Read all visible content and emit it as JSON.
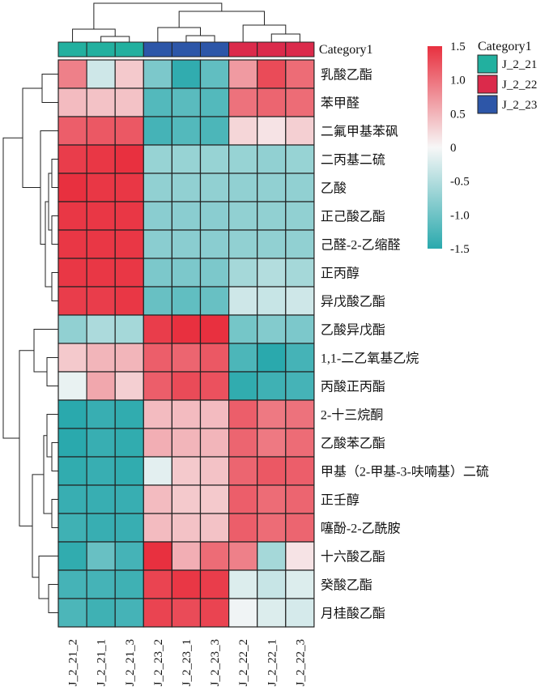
{
  "chart_data": {
    "type": "heatmap",
    "title": "",
    "color_scale": {
      "min": -1.5,
      "max": 1.5,
      "low_color": "#2aa9ad",
      "mid_color": "#f7f7f7",
      "high_color": "#e8303f",
      "ticks": [
        "1.5",
        "1.0",
        "0.5",
        "0",
        "-0.5",
        "-1.0",
        "-1.5"
      ]
    },
    "category_label": "Category1",
    "legend": {
      "title": "Category1",
      "items": [
        {
          "label": "J_2_21",
          "color": "#22b09f"
        },
        {
          "label": "J_2_22",
          "color": "#db2a4b"
        },
        {
          "label": "J_2_23",
          "color": "#2d56a8"
        }
      ]
    },
    "columns": [
      "J_2_21_2",
      "J_2_21_1",
      "J_2_21_3",
      "J_2_23_2",
      "J_2_23_1",
      "J_2_23_3",
      "J_2_22_2",
      "J_2_22_1",
      "J_2_22_3"
    ],
    "column_groups": [
      "J_2_21",
      "J_2_21",
      "J_2_21",
      "J_2_23",
      "J_2_23",
      "J_2_23",
      "J_2_22",
      "J_2_22",
      "J_2_22"
    ],
    "rows": [
      "乳酸乙酯",
      "苯甲醛",
      "二氟甲基苯砜",
      "二丙基二硫",
      "乙酸",
      "正己酸乙酯",
      "己醛-2-乙缩醛",
      "正丙醇",
      "异戊酸乙酯",
      "乙酸异戊酯",
      "1,1-二乙氧基乙烷",
      "丙酸正丙酯",
      "2-十三烷酮",
      "乙酸苯乙酯",
      "甲基（2-甲基-3-呋喃基）二硫",
      "正壬醇",
      "噻酚-2-乙酰胺",
      "十六酸乙酯",
      "癸酸乙酯",
      "月桂酸乙酯"
    ],
    "values": [
      [
        0.9,
        -0.3,
        0.35,
        -0.9,
        -1.45,
        -1.1,
        0.7,
        1.3,
        1.05
      ],
      [
        0.45,
        0.4,
        0.4,
        -1.2,
        -1.15,
        -1.2,
        1.0,
        1.1,
        1.05
      ],
      [
        1.15,
        1.2,
        1.2,
        -1.3,
        -1.2,
        -1.25,
        0.25,
        0.15,
        0.3
      ],
      [
        1.4,
        1.45,
        1.55,
        -0.7,
        -0.7,
        -0.7,
        -0.7,
        -0.75,
        -0.7
      ],
      [
        1.5,
        1.45,
        1.45,
        -0.75,
        -0.75,
        -0.75,
        -0.75,
        -0.75,
        -0.75
      ],
      [
        1.45,
        1.45,
        1.45,
        -0.8,
        -0.8,
        -0.8,
        -0.75,
        -0.75,
        -0.75
      ],
      [
        1.45,
        1.45,
        1.45,
        -0.8,
        -0.8,
        -0.8,
        -0.75,
        -0.75,
        -0.75
      ],
      [
        1.45,
        1.45,
        1.45,
        -0.9,
        -0.9,
        -0.9,
        -0.6,
        -0.5,
        -0.6
      ],
      [
        1.4,
        1.4,
        1.45,
        -1.05,
        -1.1,
        -1.05,
        -0.3,
        -0.35,
        -0.3
      ],
      [
        -0.75,
        -0.55,
        -0.6,
        1.4,
        1.5,
        1.5,
        -0.95,
        -0.85,
        -0.9
      ],
      [
        0.35,
        0.5,
        0.5,
        1.15,
        1.1,
        1.2,
        -1.25,
        -1.5,
        -1.3
      ],
      [
        -0.1,
        0.6,
        0.3,
        1.15,
        1.3,
        1.25,
        -1.45,
        -1.35,
        -1.3
      ],
      [
        -1.5,
        -1.4,
        -1.45,
        0.45,
        0.45,
        0.45,
        1.15,
        0.95,
        1.0
      ],
      [
        -1.5,
        -1.4,
        -1.45,
        0.55,
        0.5,
        0.5,
        1.1,
        0.95,
        1.05
      ],
      [
        -1.45,
        -1.4,
        -1.45,
        -0.15,
        0.35,
        0.4,
        1.1,
        1.2,
        1.15
      ],
      [
        -1.4,
        -1.4,
        -1.4,
        0.45,
        0.35,
        0.35,
        1.15,
        1.05,
        1.1
      ],
      [
        -1.35,
        -1.4,
        -1.4,
        0.45,
        0.4,
        0.4,
        1.15,
        1.05,
        1.1
      ],
      [
        -1.45,
        -1.05,
        -1.3,
        1.5,
        0.55,
        1.05,
        0.9,
        -0.6,
        0.15
      ],
      [
        -1.3,
        -1.3,
        -1.35,
        1.35,
        1.45,
        1.4,
        -0.2,
        -0.35,
        -0.2
      ],
      [
        -1.25,
        -1.35,
        -1.3,
        1.35,
        1.3,
        1.35,
        -0.05,
        -0.2,
        -0.25
      ]
    ]
  }
}
